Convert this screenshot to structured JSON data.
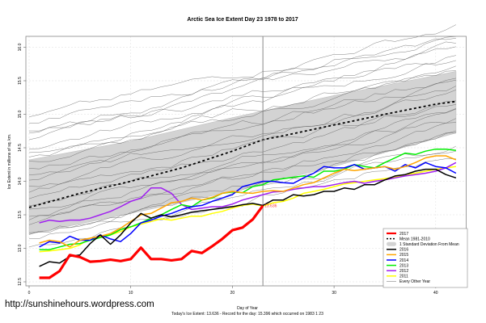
{
  "chart_data": {
    "type": "line",
    "title": "Arctic Sea Ice Extent Day 23 1978 to 2017",
    "xlabel": "Day of Year",
    "ylabel": "Ice Extent in millions of sq. km.",
    "subtitle": "Today's Ice Extent: 13.636  - Record for the day: 15.396 which occurred on 1983 1 23",
    "xlim": [
      0,
      43
    ],
    "ylim": [
      12.5,
      16.1
    ],
    "x_ticks": [
      0,
      10,
      20,
      30,
      40
    ],
    "y_ticks": [
      12.5,
      13.0,
      13.5,
      14.0,
      14.5,
      15.0,
      15.5,
      16.0
    ],
    "grid": true,
    "current_day": 23,
    "current_value_label": "13.636",
    "legend_position": "bottom-right",
    "legend": [
      {
        "label": "2017",
        "color": "#ff0000",
        "style": "thick"
      },
      {
        "label": "Mean 1981-2010",
        "color": "#000000",
        "style": "dashed"
      },
      {
        "label": "1 Standard Deviation From Mean",
        "color": "#d3d3d3",
        "style": "band"
      },
      {
        "label": "2016",
        "color": "#000000",
        "style": "solid"
      },
      {
        "label": "2015",
        "color": "#ffa500",
        "style": "solid"
      },
      {
        "label": "2014",
        "color": "#0000ff",
        "style": "solid"
      },
      {
        "label": "2013",
        "color": "#00ee00",
        "style": "solid"
      },
      {
        "label": "2012",
        "color": "#a020f0",
        "style": "solid"
      },
      {
        "label": "2011",
        "color": "#ffff00",
        "style": "solid"
      },
      {
        "label": "Every Other Year",
        "color": "#808080",
        "style": "thin"
      }
    ],
    "mean": {
      "x": [
        0,
        5,
        10,
        15,
        20,
        23,
        25,
        30,
        35,
        40,
        42
      ],
      "y": [
        13.61,
        13.82,
        14.0,
        14.2,
        14.45,
        14.62,
        14.68,
        14.84,
        15.0,
        15.15,
        15.19
      ]
    },
    "sd_band": {
      "x": [
        0,
        10,
        20,
        30,
        42
      ],
      "lower": [
        13.21,
        13.52,
        13.85,
        14.22,
        14.72
      ],
      "upper": [
        14.32,
        14.6,
        14.95,
        15.28,
        15.64
      ]
    },
    "series": [
      {
        "name": "2017",
        "color": "#ff0000",
        "width": 3.2,
        "x": [
          1,
          2,
          3,
          4,
          5,
          6,
          7,
          8,
          9,
          10,
          11,
          12,
          13,
          14,
          15,
          16,
          17,
          18,
          19,
          20,
          21,
          22,
          23
        ],
        "y": [
          12.56,
          12.56,
          12.66,
          12.9,
          12.87,
          12.8,
          12.81,
          12.83,
          12.81,
          12.84,
          13.01,
          12.84,
          12.84,
          12.82,
          12.84,
          12.96,
          12.93,
          13.03,
          13.14,
          13.27,
          13.31,
          13.43,
          13.636
        ]
      },
      {
        "name": "2016",
        "color": "#000000",
        "width": 1.5,
        "x": [
          1,
          2,
          3,
          4,
          5,
          6,
          7,
          8,
          9,
          10,
          11,
          12,
          13,
          14,
          15,
          16,
          17,
          18,
          19,
          20,
          21,
          22,
          23,
          24,
          25,
          26,
          27,
          28,
          29,
          30,
          31,
          32,
          33,
          34,
          35,
          36,
          37,
          38,
          39,
          40,
          41,
          42
        ],
        "y": [
          12.73,
          12.8,
          12.78,
          12.88,
          12.9,
          13.07,
          13.2,
          13.06,
          13.2,
          13.38,
          13.52,
          13.45,
          13.5,
          13.47,
          13.5,
          13.54,
          13.56,
          13.58,
          13.6,
          13.62,
          13.65,
          13.67,
          13.64,
          13.72,
          13.72,
          13.8,
          13.78,
          13.8,
          13.85,
          13.85,
          13.9,
          13.88,
          13.95,
          13.95,
          14.02,
          14.08,
          14.1,
          14.15,
          14.18,
          14.18,
          14.1,
          14.05
        ]
      },
      {
        "name": "2015",
        "color": "#ffa500",
        "width": 1.5,
        "x": [
          1,
          2,
          3,
          4,
          5,
          6,
          7,
          8,
          9,
          10,
          11,
          12,
          13,
          14,
          15,
          16,
          17,
          18,
          19,
          20,
          21,
          22,
          23,
          24,
          25,
          26,
          27,
          28,
          29,
          30,
          31,
          32,
          33,
          34,
          35,
          36,
          37,
          38,
          39,
          40,
          41,
          42
        ],
        "y": [
          13.08,
          13.12,
          13.1,
          13.02,
          13.12,
          13.15,
          13.18,
          13.22,
          13.3,
          13.4,
          13.5,
          13.52,
          13.6,
          13.68,
          13.7,
          13.75,
          13.72,
          13.76,
          13.82,
          13.85,
          13.83,
          13.82,
          13.85,
          13.86,
          13.85,
          13.9,
          13.95,
          13.98,
          14.05,
          14.12,
          14.18,
          14.16,
          14.18,
          14.2,
          14.22,
          14.18,
          14.22,
          14.28,
          14.35,
          14.38,
          14.38,
          14.32
        ]
      },
      {
        "name": "2014",
        "color": "#0000ff",
        "width": 1.5,
        "x": [
          1,
          2,
          3,
          4,
          5,
          6,
          7,
          8,
          9,
          10,
          11,
          12,
          13,
          14,
          15,
          16,
          17,
          18,
          19,
          20,
          21,
          22,
          23,
          24,
          25,
          26,
          27,
          28,
          29,
          30,
          31,
          32,
          33,
          34,
          35,
          36,
          37,
          38,
          39,
          40,
          41,
          42
        ],
        "y": [
          13.02,
          13.1,
          13.08,
          13.18,
          13.12,
          13.12,
          13.2,
          13.14,
          13.1,
          13.22,
          13.38,
          13.42,
          13.48,
          13.52,
          13.58,
          13.62,
          13.64,
          13.7,
          13.75,
          13.8,
          13.92,
          13.96,
          14.0,
          14.0,
          13.98,
          13.97,
          14.05,
          14.12,
          14.22,
          14.2,
          14.2,
          14.25,
          14.18,
          14.2,
          14.22,
          14.15,
          14.25,
          14.2,
          14.28,
          14.22,
          14.2,
          14.12
        ]
      },
      {
        "name": "2013",
        "color": "#00ee00",
        "width": 1.5,
        "x": [
          1,
          2,
          3,
          4,
          5,
          6,
          7,
          8,
          9,
          10,
          11,
          12,
          13,
          14,
          15,
          16,
          17,
          18,
          19,
          20,
          21,
          22,
          23,
          24,
          25,
          26,
          27,
          28,
          29,
          30,
          31,
          32,
          33,
          34,
          35,
          36,
          37,
          38,
          39,
          40,
          41,
          42
        ],
        "y": [
          12.98,
          12.98,
          13.02,
          13.06,
          13.07,
          13.12,
          13.16,
          13.2,
          13.28,
          13.32,
          13.38,
          13.45,
          13.5,
          13.58,
          13.65,
          13.62,
          13.72,
          13.75,
          13.82,
          13.84,
          13.83,
          13.92,
          13.95,
          14.02,
          14.04,
          14.06,
          14.08,
          14.06,
          14.15,
          14.15,
          14.18,
          14.25,
          14.22,
          14.2,
          14.28,
          14.35,
          14.42,
          14.4,
          14.45,
          14.48,
          14.48,
          14.46
        ]
      },
      {
        "name": "2012",
        "color": "#a020f0",
        "width": 1.5,
        "x": [
          1,
          2,
          3,
          4,
          5,
          6,
          7,
          8,
          9,
          10,
          11,
          12,
          13,
          14,
          15,
          16,
          17,
          18,
          19,
          20,
          21,
          22,
          23,
          24,
          25,
          26,
          27,
          28,
          29,
          30,
          31,
          32,
          33,
          34,
          35,
          36,
          37,
          38,
          39,
          40,
          41,
          42
        ],
        "y": [
          13.38,
          13.42,
          13.4,
          13.42,
          13.42,
          13.45,
          13.5,
          13.55,
          13.62,
          13.7,
          13.75,
          13.9,
          13.9,
          13.82,
          13.65,
          13.58,
          13.6,
          13.62,
          13.62,
          13.66,
          13.72,
          13.76,
          13.8,
          13.84,
          13.85,
          13.88,
          13.9,
          13.92,
          13.92,
          13.95,
          13.98,
          14.0,
          13.97,
          14.0,
          14.02,
          14.05,
          14.08,
          14.1,
          14.12,
          14.15,
          14.2,
          14.28
        ]
      },
      {
        "name": "2011",
        "color": "#ffff00",
        "width": 1.5,
        "x": [
          1,
          2,
          3,
          4,
          5,
          6,
          7,
          8,
          9,
          10,
          11,
          12,
          13,
          14,
          15,
          16,
          17,
          18,
          19,
          20,
          21,
          22,
          23,
          24,
          25,
          26,
          27,
          28,
          29,
          30,
          31,
          32,
          33,
          34,
          35,
          36,
          37,
          38,
          39,
          40,
          41,
          42
        ],
        "y": [
          12.95,
          12.96,
          12.98,
          13.0,
          13.05,
          13.15,
          13.18,
          13.2,
          13.25,
          13.32,
          13.36,
          13.4,
          13.44,
          13.42,
          13.45,
          13.48,
          13.48,
          13.52,
          13.55,
          13.6,
          13.64,
          13.66,
          13.63,
          13.68,
          13.7,
          13.75,
          13.82,
          13.85,
          13.88,
          13.92,
          13.96,
          13.98,
          14.0,
          14.02,
          14.04,
          14.06,
          14.1,
          14.12,
          14.15,
          14.18,
          14.2,
          14.22
        ]
      }
    ]
  },
  "footer": {
    "url": "http://sunshinehours.wordpress.com"
  }
}
